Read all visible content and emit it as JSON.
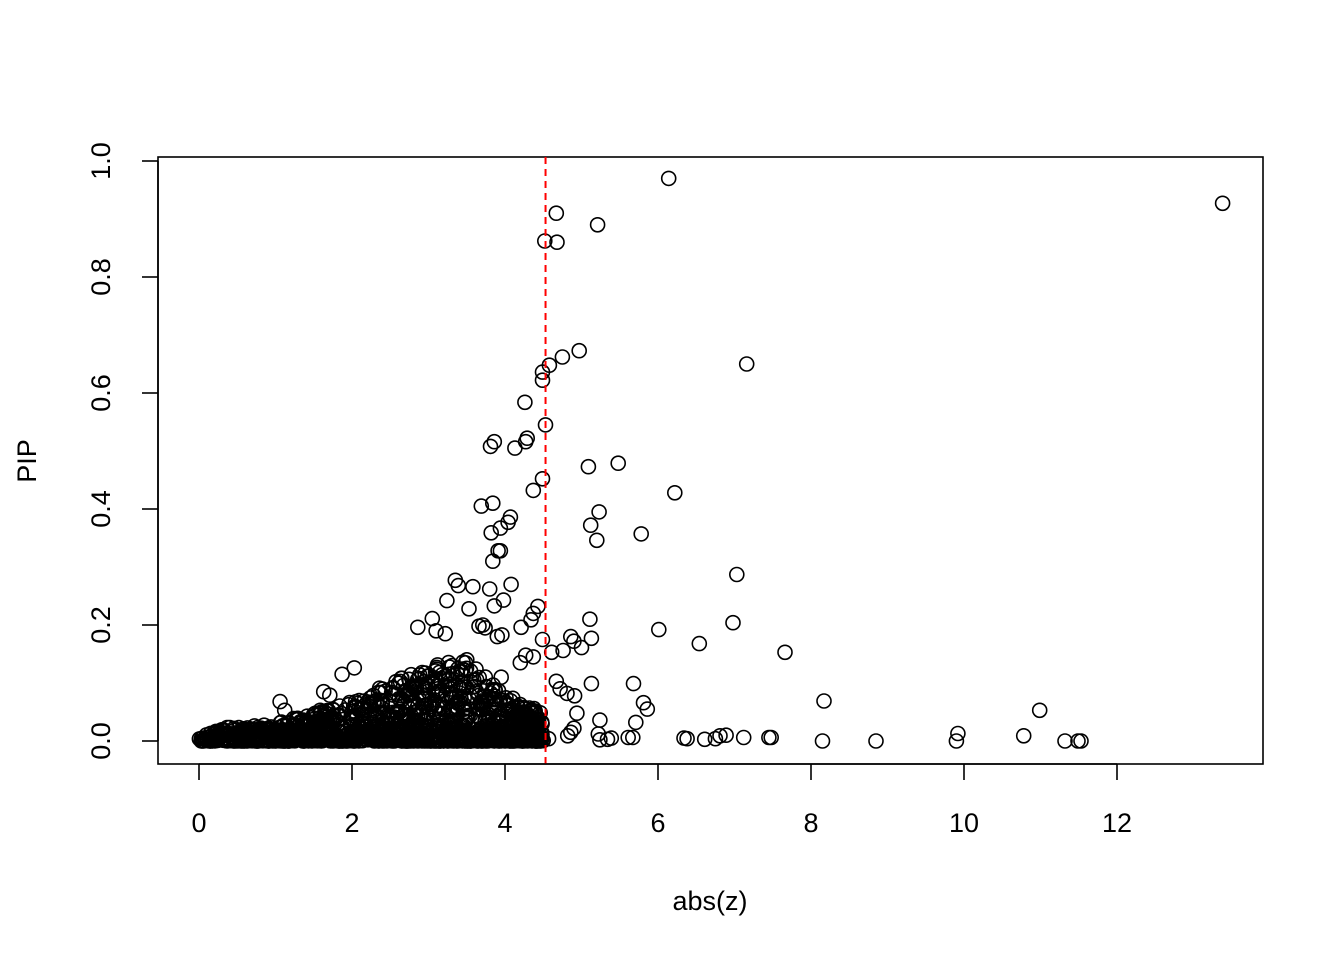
{
  "chart_data": {
    "type": "scatter",
    "title": "",
    "xlabel": "abs(z)",
    "ylabel": "PIP",
    "xlim": [
      0,
      13.5
    ],
    "ylim": [
      0,
      1
    ],
    "xticks": [
      0,
      2,
      4,
      6,
      8,
      10,
      12
    ],
    "yticks": [
      0.0,
      0.2,
      0.4,
      0.6,
      0.8,
      1.0
    ],
    "xtick_labels": [
      "0",
      "2",
      "4",
      "6",
      "8",
      "10",
      "12"
    ],
    "ytick_labels": [
      "0.0",
      "0.2",
      "0.4",
      "0.6",
      "0.8",
      "1.0"
    ],
    "grid": false,
    "legend": "none",
    "reference_line": {
      "orientation": "vertical",
      "x": 4.53,
      "style": "dashed",
      "color": "#ff0000"
    },
    "point_style": {
      "shape": "open-circle",
      "color": "#000000"
    },
    "points": [
      [
        6.14,
        0.97
      ],
      [
        13.38,
        0.927
      ],
      [
        4.67,
        0.91
      ],
      [
        5.21,
        0.89
      ],
      [
        4.52,
        0.862
      ],
      [
        4.68,
        0.86
      ],
      [
        4.97,
        0.673
      ],
      [
        4.75,
        0.662
      ],
      [
        4.58,
        0.648
      ],
      [
        4.49,
        0.636
      ],
      [
        4.49,
        0.622
      ],
      [
        7.16,
        0.65
      ],
      [
        4.26,
        0.584
      ],
      [
        4.53,
        0.545
      ],
      [
        3.86,
        0.516
      ],
      [
        3.81,
        0.508
      ],
      [
        4.29,
        0.522
      ],
      [
        4.27,
        0.516
      ],
      [
        4.13,
        0.505
      ],
      [
        5.48,
        0.479
      ],
      [
        5.09,
        0.473
      ],
      [
        4.49,
        0.452
      ],
      [
        4.37,
        0.432
      ],
      [
        6.22,
        0.428
      ],
      [
        3.69,
        0.405
      ],
      [
        3.84,
        0.41
      ],
      [
        5.23,
        0.395
      ],
      [
        4.07,
        0.386
      ],
      [
        4.04,
        0.377
      ],
      [
        3.94,
        0.367
      ],
      [
        5.12,
        0.372
      ],
      [
        3.82,
        0.359
      ],
      [
        5.78,
        0.357
      ],
      [
        5.2,
        0.346
      ],
      [
        3.91,
        0.328
      ],
      [
        3.94,
        0.328
      ],
      [
        3.84,
        0.31
      ],
      [
        7.03,
        0.287
      ],
      [
        3.35,
        0.277
      ],
      [
        3.39,
        0.268
      ],
      [
        3.58,
        0.266
      ],
      [
        4.08,
        0.27
      ],
      [
        3.8,
        0.262
      ],
      [
        3.98,
        0.243
      ],
      [
        3.24,
        0.242
      ],
      [
        4.43,
        0.232
      ],
      [
        3.86,
        0.233
      ],
      [
        3.53,
        0.228
      ],
      [
        4.37,
        0.22
      ],
      [
        4.34,
        0.209
      ],
      [
        5.11,
        0.21
      ],
      [
        3.05,
        0.211
      ],
      [
        6.98,
        0.204
      ],
      [
        3.66,
        0.198
      ],
      [
        3.71,
        0.2
      ],
      [
        3.74,
        0.195
      ],
      [
        4.21,
        0.196
      ],
      [
        2.86,
        0.196
      ],
      [
        3.1,
        0.19
      ],
      [
        3.22,
        0.185
      ],
      [
        6.01,
        0.192
      ],
      [
        3.96,
        0.183
      ],
      [
        3.9,
        0.18
      ],
      [
        4.49,
        0.175
      ],
      [
        4.86,
        0.18
      ],
      [
        4.9,
        0.172
      ],
      [
        5.13,
        0.177
      ],
      [
        6.54,
        0.168
      ],
      [
        5.0,
        0.161
      ],
      [
        4.61,
        0.153
      ],
      [
        4.76,
        0.156
      ],
      [
        7.66,
        0.153
      ],
      [
        4.27,
        0.148
      ],
      [
        4.37,
        0.145
      ],
      [
        3.5,
        0.14
      ],
      [
        4.2,
        0.135
      ],
      [
        3.31,
        0.13
      ],
      [
        2.03,
        0.126
      ],
      [
        1.87,
        0.115
      ],
      [
        3.02,
        0.113
      ],
      [
        3.95,
        0.11
      ],
      [
        4.67,
        0.103
      ],
      [
        5.68,
        0.099
      ],
      [
        5.13,
        0.099
      ],
      [
        4.72,
        0.09
      ],
      [
        4.81,
        0.082
      ],
      [
        4.91,
        0.078
      ],
      [
        1.63,
        0.085
      ],
      [
        1.71,
        0.079
      ],
      [
        8.17,
        0.069
      ],
      [
        1.06,
        0.068
      ],
      [
        5.81,
        0.066
      ],
      [
        5.86,
        0.055
      ],
      [
        1.12,
        0.053
      ],
      [
        4.94,
        0.048
      ],
      [
        5.71,
        0.032
      ],
      [
        5.24,
        0.036
      ],
      [
        10.99,
        0.053
      ],
      [
        4.9,
        0.022
      ],
      [
        4.86,
        0.015
      ],
      [
        5.22,
        0.012
      ],
      [
        9.92,
        0.013
      ],
      [
        10.78,
        0.009
      ],
      [
        4.82,
        0.009
      ],
      [
        5.61,
        0.006
      ],
      [
        5.67,
        0.006
      ],
      [
        6.34,
        0.005
      ],
      [
        6.38,
        0.004
      ],
      [
        6.61,
        0.003
      ],
      [
        6.75,
        0.004
      ],
      [
        6.81,
        0.009
      ],
      [
        6.89,
        0.01
      ],
      [
        7.12,
        0.006
      ],
      [
        7.45,
        0.006
      ],
      [
        7.48,
        0.006
      ],
      [
        8.15,
        0.0
      ],
      [
        8.85,
        0.0
      ],
      [
        9.9,
        0.0
      ],
      [
        11.32,
        0.0
      ],
      [
        11.49,
        0.0
      ],
      [
        11.53,
        0.0
      ],
      [
        5.24,
        0.002
      ],
      [
        5.34,
        0.003
      ],
      [
        5.39,
        0.005
      ],
      [
        4.57,
        0.004
      ],
      [
        4.4,
        0.006
      ],
      [
        4.06,
        0.009
      ]
    ],
    "dense_cloud": {
      "note": "thousands of overlapping points near zero",
      "x_range": [
        0.0,
        4.5
      ],
      "y_envelope": [
        [
          0.0,
          0.02
        ],
        [
          1.0,
          0.03
        ],
        [
          2.0,
          0.07
        ],
        [
          2.5,
          0.1
        ],
        [
          3.0,
          0.13
        ],
        [
          3.5,
          0.14
        ],
        [
          4.0,
          0.08
        ],
        [
          4.5,
          0.05
        ]
      ]
    }
  }
}
